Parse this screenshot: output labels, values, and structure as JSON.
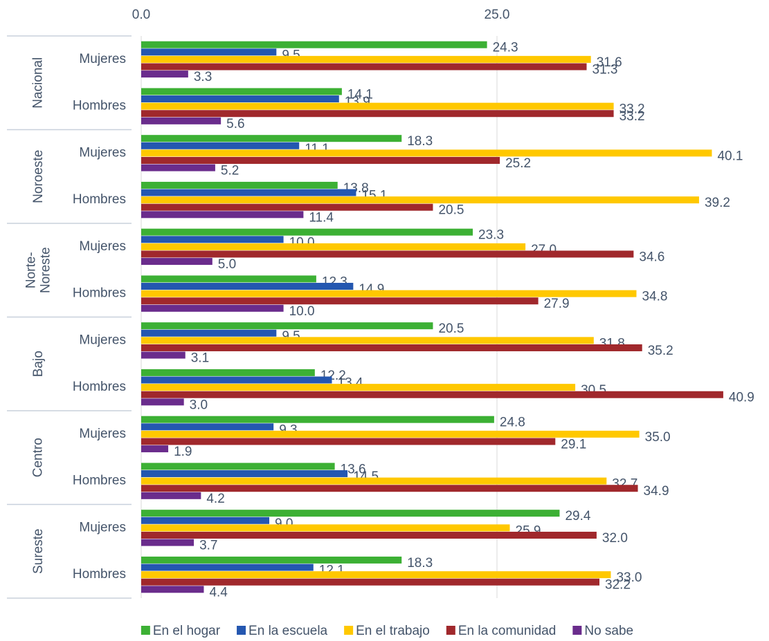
{
  "chart_data": {
    "type": "bar",
    "orientation": "horizontal",
    "groups": [
      "Nacional",
      "Noroeste",
      "Norte-\nNoreste",
      "Bajo",
      "Centro",
      "Sureste"
    ],
    "categories": [
      "Mujeres",
      "Hombres",
      "Mujeres",
      "Hombres",
      "Mujeres",
      "Hombres",
      "Mujeres",
      "Hombres",
      "Mujeres",
      "Hombres",
      "Mujeres",
      "Hombres"
    ],
    "series": [
      {
        "name": "En el hogar",
        "color": "#3cb034",
        "values": [
          24.3,
          14.1,
          18.3,
          13.8,
          23.3,
          12.3,
          20.5,
          12.2,
          24.8,
          13.6,
          29.4,
          18.3
        ],
        "value_labels": [
          "24.3",
          "14.1",
          "18.3",
          "13.8",
          "23.3",
          "12.3",
          "20.5",
          "12.2",
          "24.8",
          "13.6",
          "29.4",
          "18.3"
        ]
      },
      {
        "name": "En la escuela",
        "color": "#2457b0",
        "values": [
          9.5,
          13.9,
          11.1,
          15.1,
          10.0,
          14.9,
          9.5,
          13.4,
          9.3,
          14.5,
          9.0,
          12.1
        ],
        "value_labels": [
          "9.5",
          "13.9",
          "11.1",
          "15.1",
          "10.0",
          "14.9",
          "9.5",
          "13.4",
          "9.3",
          "14.5",
          "9.0",
          "12.1"
        ]
      },
      {
        "name": "En el trabajo",
        "color": "#ffc800",
        "values": [
          31.6,
          33.2,
          40.1,
          39.2,
          27.0,
          34.8,
          31.8,
          30.5,
          35.0,
          32.7,
          25.9,
          33.0
        ],
        "value_labels": [
          "31.6",
          "33.2",
          "40.1",
          "39.2",
          "27.0",
          "34.8",
          "31.8",
          "30.5",
          "35.0",
          "32.7",
          "25.9",
          "33.0"
        ]
      },
      {
        "name": "En la comunidad",
        "color": "#a0282c",
        "values": [
          31.3,
          33.2,
          25.2,
          20.5,
          34.6,
          27.9,
          35.2,
          40.9,
          29.1,
          34.9,
          32.0,
          32.2
        ],
        "value_labels": [
          "31.3",
          "33.2",
          "25.2",
          "20.5",
          "34.6",
          "27.9",
          "35.2",
          "40.9",
          "29.1",
          "34.9",
          "32.0",
          "32.2"
        ]
      },
      {
        "name": "No sabe",
        "color": "#6a2c8c",
        "values": [
          3.3,
          5.6,
          5.2,
          11.4,
          5.0,
          10.0,
          3.1,
          3.0,
          1.9,
          4.2,
          3.7,
          4.4
        ],
        "value_labels": [
          "3.3",
          "5.6",
          "5.2",
          "11.4",
          "5.0",
          "10.0",
          "3.1",
          "3.0",
          "1.9",
          "4.2",
          "3.7",
          "4.4"
        ]
      }
    ],
    "xlim": [
      0,
      42
    ],
    "xticks": [
      {
        "value": 0,
        "label": "0.0"
      },
      {
        "value": 25,
        "label": "25.0"
      }
    ],
    "grid": true,
    "legend": "bottom"
  }
}
